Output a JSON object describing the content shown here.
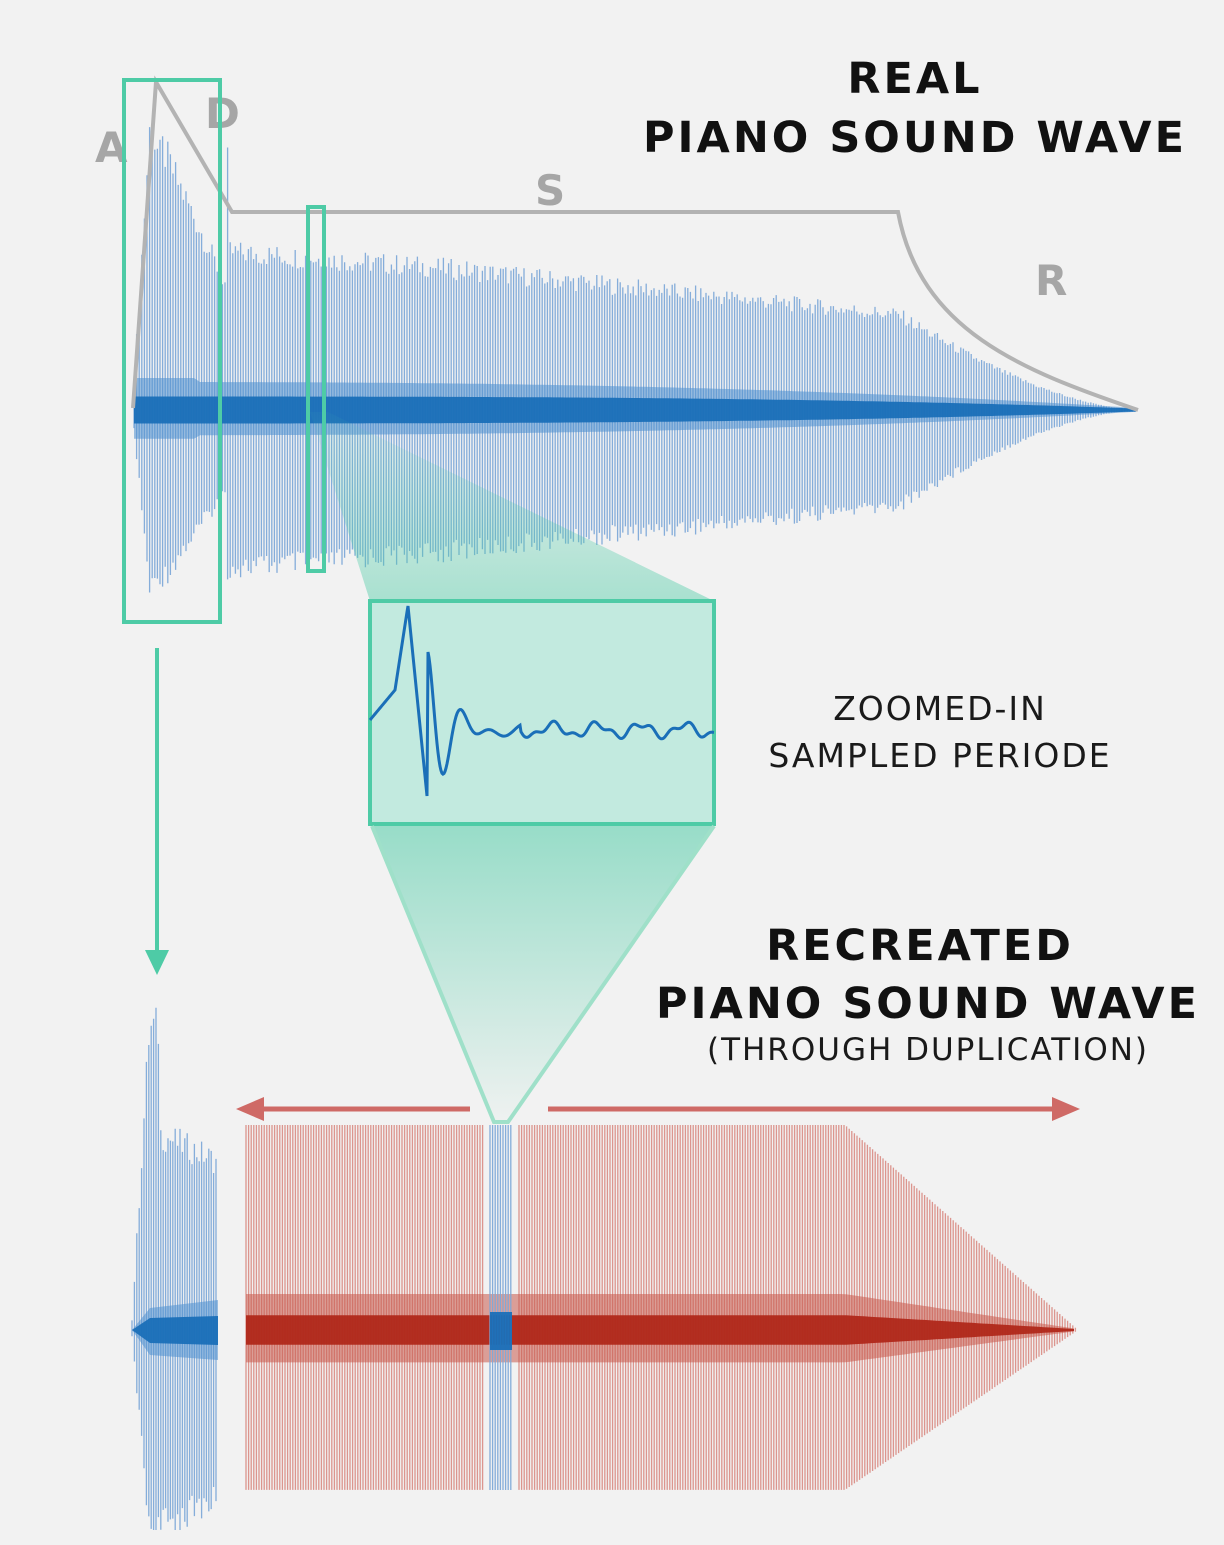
{
  "top_title": {
    "line1": "REAL",
    "line2": "PIANO SOUND WAVE"
  },
  "adsr_labels": {
    "a": "A",
    "d": "D",
    "s": "S",
    "r": "R"
  },
  "zoom_caption": {
    "line1": "ZOOMED-IN",
    "line2": "SAMPLED PERIODE"
  },
  "bottom_title": {
    "line1": "RECREATED",
    "line2": "PIANO SOUND WAVE",
    "line3": "(THROUGH DUPLICATION)"
  },
  "colors": {
    "background": "#f2f2f2",
    "wave_blue_light": "#7ea9d8",
    "wave_blue_core": "#1a6fb8",
    "wave_red_light": "#d98b83",
    "wave_red_core": "#b0281a",
    "highlight_green": "#4ecba6",
    "zoom_fill": "#c2eadf",
    "envelope_gray": "#b3b3b3",
    "arrow_red": "#cf6a66"
  }
}
